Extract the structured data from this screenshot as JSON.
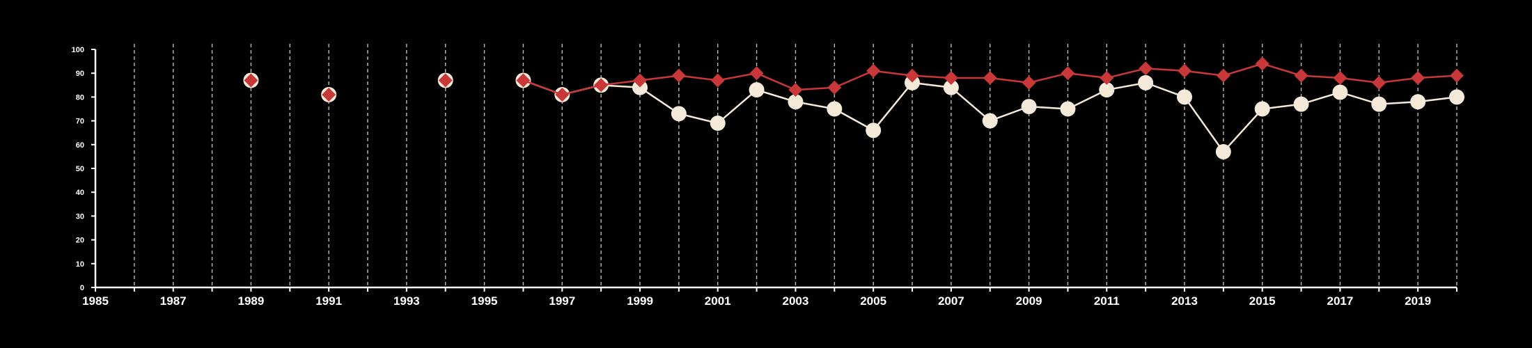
{
  "chart_data": {
    "type": "line",
    "title": "",
    "xlabel": "",
    "ylabel": "",
    "xlim": [
      1985,
      2020
    ],
    "ylim": [
      0,
      100
    ],
    "x_ticks": [
      "1985",
      "1987",
      "1989",
      "1991",
      "1993",
      "1995",
      "1997",
      "1999",
      "2001",
      "2003",
      "2005",
      "2007",
      "2009",
      "2011",
      "2013",
      "2015",
      "2017",
      "2019"
    ],
    "y_ticks": [
      "0",
      "10",
      "20",
      "30",
      "40",
      "50",
      "60",
      "70",
      "80",
      "90",
      "100"
    ],
    "grid": "vertical-dashed",
    "legend": "none",
    "series": [
      {
        "color": "#f5ead9",
        "marker": "circle",
        "x": [
          1989,
          1991,
          1994,
          1996,
          1997,
          1998,
          1999,
          2000,
          2001,
          2002,
          2003,
          2004,
          2005,
          2006,
          2007,
          2008,
          2009,
          2010,
          2011,
          2012,
          2013,
          2014,
          2015,
          2016,
          2017,
          2018,
          2019,
          2020
        ],
        "values": [
          87,
          81,
          87,
          87,
          81,
          85,
          84,
          73,
          69,
          83,
          78,
          75,
          66,
          86,
          84,
          70,
          76,
          75,
          83,
          86,
          80,
          57,
          75,
          77,
          82,
          77,
          78,
          80
        ]
      },
      {
        "color": "#c93838",
        "marker": "diamond",
        "x": [
          1989,
          1991,
          1994,
          1996,
          1997,
          1998,
          1999,
          2000,
          2001,
          2002,
          2003,
          2004,
          2005,
          2006,
          2007,
          2008,
          2009,
          2010,
          2011,
          2012,
          2013,
          2014,
          2015,
          2016,
          2017,
          2018,
          2019,
          2020
        ],
        "values": [
          87,
          81,
          87,
          87,
          81,
          85,
          87,
          89,
          87,
          90,
          83,
          84,
          91,
          89,
          88,
          88,
          86,
          90,
          88,
          92,
          91,
          89,
          94,
          89,
          88,
          86,
          88,
          89
        ]
      }
    ]
  }
}
